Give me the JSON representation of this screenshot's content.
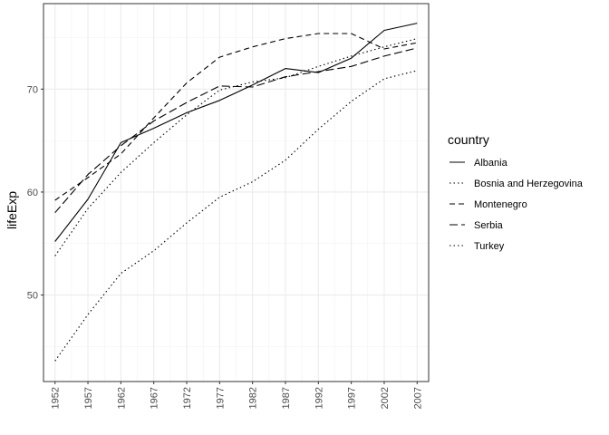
{
  "chart_data": {
    "type": "line",
    "title": "",
    "xlabel": "",
    "ylabel": "lifeExp",
    "x": [
      1952,
      1957,
      1962,
      1967,
      1972,
      1977,
      1982,
      1987,
      1992,
      1997,
      2002,
      2007
    ],
    "xticks": [
      "1952",
      "1957",
      "1962",
      "1967",
      "1972",
      "1977",
      "1982",
      "1987",
      "1992",
      "1997",
      "2002",
      "2007"
    ],
    "yticks": [
      "50",
      "60",
      "70"
    ],
    "xlim": [
      1950.25,
      2008.75
    ],
    "ylim": [
      41.6,
      78.3
    ],
    "grid": true,
    "legend_position": "right",
    "legend_title": "country",
    "series": [
      {
        "name": "Albania",
        "dash": "solid",
        "values": [
          55.2,
          59.3,
          64.8,
          66.2,
          67.7,
          68.9,
          70.4,
          72.0,
          71.6,
          73.0,
          75.7,
          76.4
        ]
      },
      {
        "name": "Bosnia and Herzegovina",
        "dash": "dotted",
        "values": [
          53.8,
          58.4,
          61.9,
          64.8,
          67.5,
          69.9,
          70.7,
          71.1,
          72.2,
          73.2,
          74.1,
          74.9
        ]
      },
      {
        "name": "Montenegro",
        "dash": "dashed",
        "values": [
          59.2,
          61.4,
          63.7,
          67.2,
          70.6,
          73.1,
          74.1,
          74.9,
          75.4,
          75.4,
          73.9,
          74.5
        ]
      },
      {
        "name": "Serbia",
        "dash": "longdash",
        "values": [
          58.0,
          61.7,
          64.5,
          66.9,
          68.7,
          70.3,
          70.2,
          71.2,
          71.7,
          72.2,
          73.2,
          74.0
        ]
      },
      {
        "name": "Turkey",
        "dash": "dotted",
        "values": [
          43.6,
          48.1,
          52.1,
          54.3,
          57.0,
          59.5,
          61.0,
          63.1,
          66.1,
          68.8,
          71.0,
          71.8
        ]
      }
    ]
  }
}
